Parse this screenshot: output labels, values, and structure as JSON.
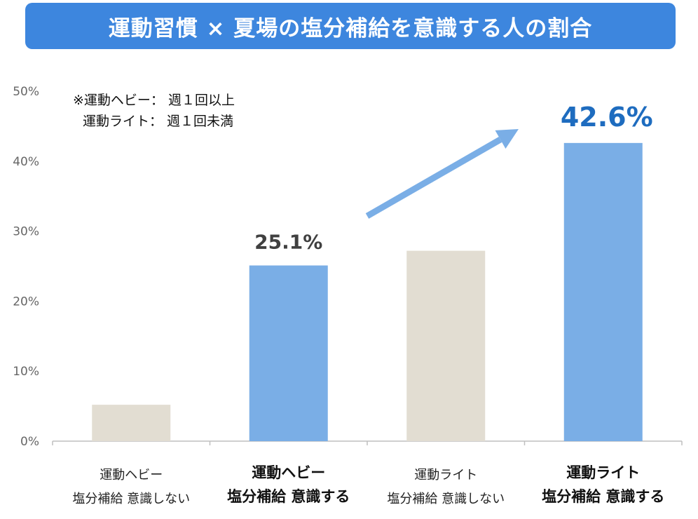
{
  "title": "運動習慣 × 夏場の塩分補給を意識する人の割合",
  "note": {
    "line1": "※運動ヘビー： 週１回以上",
    "line2": "運動ライト： 週１回未満"
  },
  "colors": {
    "title_bg": "#3d86de",
    "highlight": "#7aaee6",
    "muted": "#e2ddd2",
    "label_dark": "#404040",
    "label_blue": "#1e6cbf",
    "arrow": "#7aaee6"
  },
  "chart_data": {
    "type": "bar",
    "categories": [
      [
        "運動ヘビー",
        "塩分補給 意識しない"
      ],
      [
        "運動ヘビー",
        "塩分補給 意識する"
      ],
      [
        "運動ライト",
        "塩分補給 意識しない"
      ],
      [
        "運動ライト",
        "塩分補給 意識する"
      ]
    ],
    "values": [
      5.2,
      25.1,
      27.2,
      42.6
    ],
    "highlighted": [
      false,
      true,
      false,
      true
    ],
    "data_labels": [
      "",
      "25.1%",
      "",
      "42.6%"
    ],
    "ylim": [
      0,
      50
    ],
    "yticks": [
      "0%",
      "10%",
      "20%",
      "30%",
      "40%",
      "50%"
    ],
    "grid": false,
    "annotation": "arrow from bar 3 toward bar 4"
  }
}
